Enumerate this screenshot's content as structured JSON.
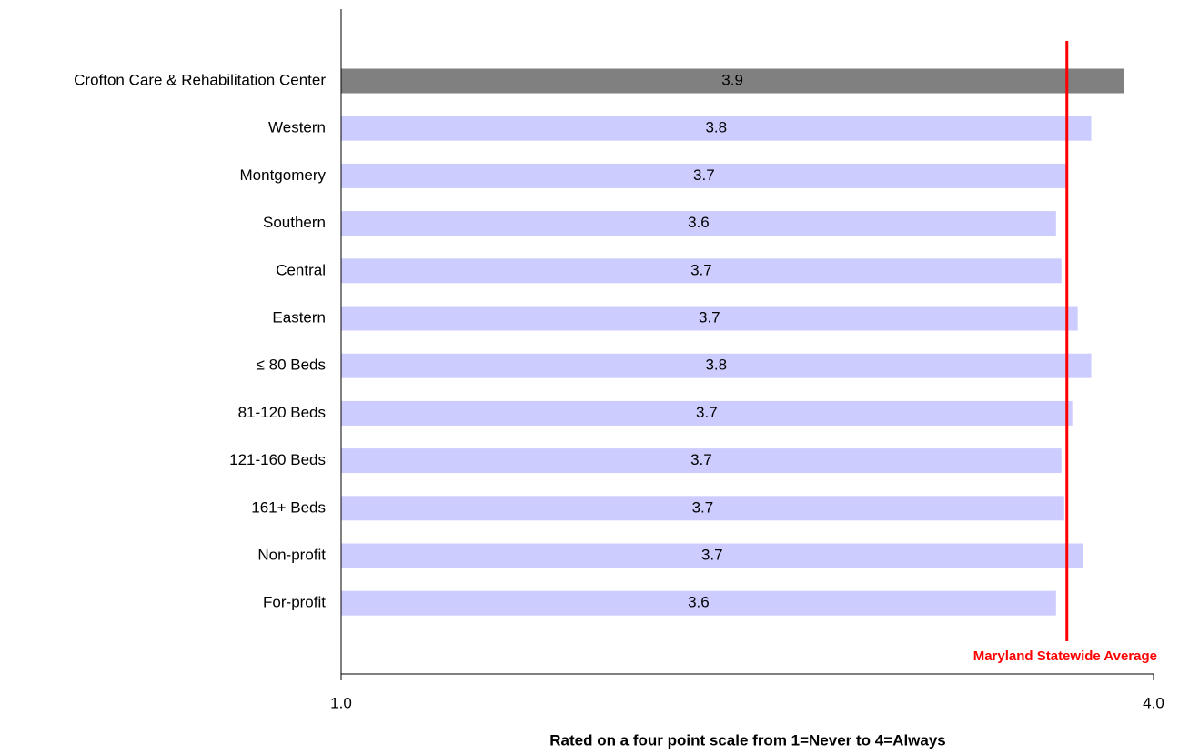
{
  "chart_data": {
    "type": "hbar",
    "categories": [
      "Crofton Care & Rehabilitation Center",
      "Western",
      "Montgomery",
      "Southern",
      "Central",
      "Eastern",
      "≤ 80 Beds",
      "81-120 Beds",
      "121-160 Beds",
      "161+ Beds",
      "Non-profit",
      "For-profit"
    ],
    "values": [
      3.89,
      3.77,
      3.68,
      3.64,
      3.66,
      3.72,
      3.77,
      3.7,
      3.66,
      3.67,
      3.74,
      3.64
    ],
    "value_labels": [
      "3.9",
      "3.8",
      "3.7",
      "3.6",
      "3.7",
      "3.7",
      "3.8",
      "3.7",
      "3.7",
      "3.7",
      "3.7",
      "3.6"
    ],
    "colors": [
      "#808080",
      "#ccccff",
      "#ccccff",
      "#ccccff",
      "#ccccff",
      "#ccccff",
      "#ccccff",
      "#ccccff",
      "#ccccff",
      "#ccccff",
      "#ccccff",
      "#ccccff"
    ],
    "xlim": [
      1,
      4
    ],
    "xticks": [
      {
        "value": 1,
        "label": "1.0"
      },
      {
        "value": 4,
        "label": "4.0"
      }
    ],
    "xlabel": "Rated on a four point scale from 1=Never to 4=Always",
    "reference_line": {
      "value": 3.68,
      "label": "Maryland Statewide Average",
      "color": "#ff0000"
    }
  }
}
